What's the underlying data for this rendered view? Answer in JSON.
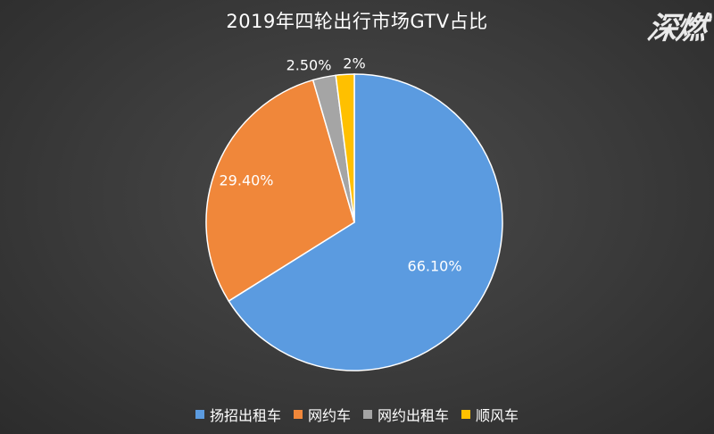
{
  "chart_data": {
    "type": "pie",
    "title": "2019年四轮出行市场GTV占比",
    "categories": [
      "扬招出租车",
      "网约车",
      "网约出租车",
      "顺风车"
    ],
    "values": [
      66.1,
      29.4,
      2.5,
      2.0
    ],
    "data_labels": [
      "66.10%",
      "29.40%",
      "2.50%",
      "2%"
    ],
    "colors": [
      "#5b9be0",
      "#f0873a",
      "#a5a5a5",
      "#ffc000"
    ],
    "start_angle_deg": 0,
    "direction": "clockwise",
    "legend_position": "bottom"
  },
  "watermark": "深燃"
}
